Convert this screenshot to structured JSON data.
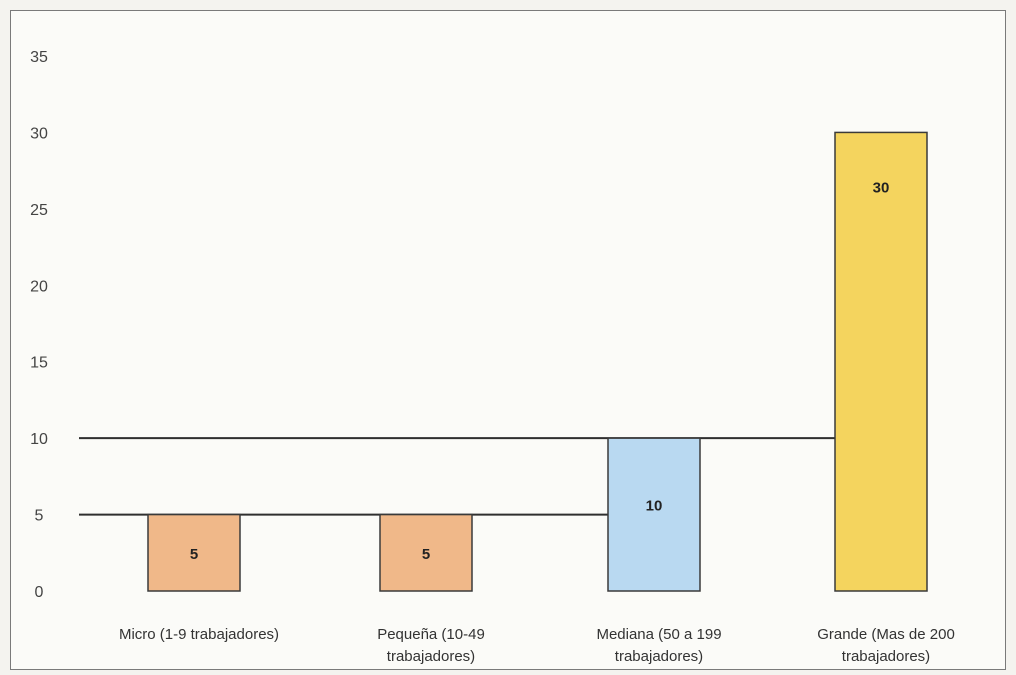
{
  "chart_data": {
    "type": "bar",
    "categories": [
      [
        "Micro (1-9 trabajadores)"
      ],
      [
        "Pequeña (10-49",
        "trabajadores)"
      ],
      [
        "Mediana (50 a 199",
        "trabajadores)"
      ],
      [
        "Grande (Mas de 200",
        "trabajadores)"
      ]
    ],
    "values": [
      5,
      5,
      10,
      30
    ],
    "data_labels": [
      "5",
      "5",
      "10",
      "30"
    ],
    "bar_colors": [
      "#f0b889",
      "#f0b889",
      "#b9d9f1",
      "#f4d45e"
    ],
    "bar_border_color": "#3a3a3a",
    "y_ticks": [
      "0",
      "5",
      "10",
      "15",
      "20",
      "25",
      "30",
      "35"
    ],
    "ylim": [
      0,
      35
    ],
    "title": "",
    "xlabel": "",
    "ylabel": "",
    "grid": false,
    "reference_lines": [
      {
        "y": 5,
        "x_from_category": 0,
        "x_to_category": 2
      },
      {
        "y": 10,
        "x_from_category": 0,
        "x_to_category": 3
      }
    ],
    "legend": "none"
  }
}
